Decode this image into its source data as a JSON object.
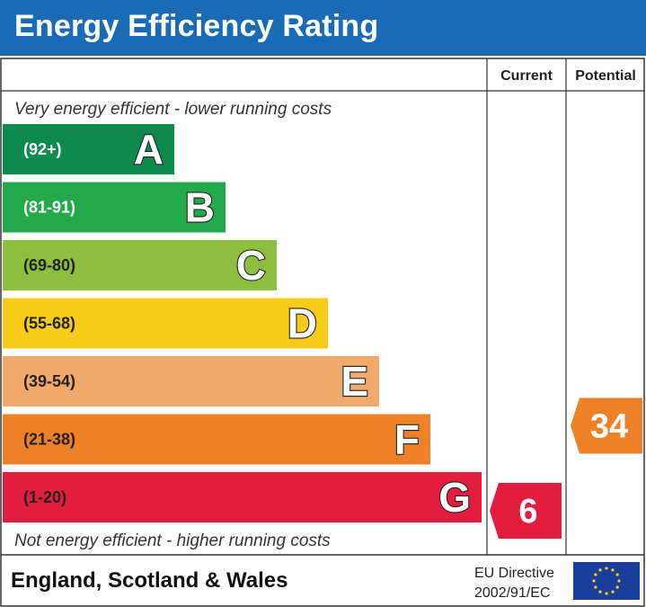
{
  "header": {
    "title": "Energy Efficiency Rating",
    "bg_color": "#1a6bb5"
  },
  "columns": {
    "current": "Current",
    "potential": "Potential"
  },
  "notes": {
    "top": "Very energy efficient - lower running costs",
    "bottom": "Not energy efficient - higher running costs"
  },
  "footer": {
    "region": "England, Scotland & Wales",
    "directive_line1": "EU Directive",
    "directive_line2": "2002/91/EC",
    "flag_icon": "eu-flag-icon"
  },
  "chart_data": {
    "type": "bar",
    "title": "Energy Efficiency Rating",
    "bands": [
      {
        "letter": "A",
        "range": "(92+)",
        "min": 92,
        "max": 100,
        "color": "#0e8a4f",
        "range_text_color": "#ffffff"
      },
      {
        "letter": "B",
        "range": "(81-91)",
        "min": 81,
        "max": 91,
        "color": "#22a94c",
        "range_text_color": "#ffffff"
      },
      {
        "letter": "C",
        "range": "(69-80)",
        "min": 69,
        "max": 80,
        "color": "#8cbf3f",
        "range_text_color": "#222222"
      },
      {
        "letter": "D",
        "range": "(55-68)",
        "min": 55,
        "max": 68,
        "color": "#f6cc18",
        "range_text_color": "#222222"
      },
      {
        "letter": "E",
        "range": "(39-54)",
        "min": 39,
        "max": 54,
        "color": "#f2a96c",
        "range_text_color": "#222222"
      },
      {
        "letter": "F",
        "range": "(21-38)",
        "min": 21,
        "max": 38,
        "color": "#ee8128",
        "range_text_color": "#222222"
      },
      {
        "letter": "G",
        "range": "(1-20)",
        "min": 1,
        "max": 20,
        "color": "#e31d3e",
        "range_text_color": "#222222"
      }
    ],
    "current": {
      "value": 6,
      "band": "G",
      "color": "#e31d3e"
    },
    "potential": {
      "value": 34,
      "band": "F",
      "color": "#ee8128"
    }
  }
}
